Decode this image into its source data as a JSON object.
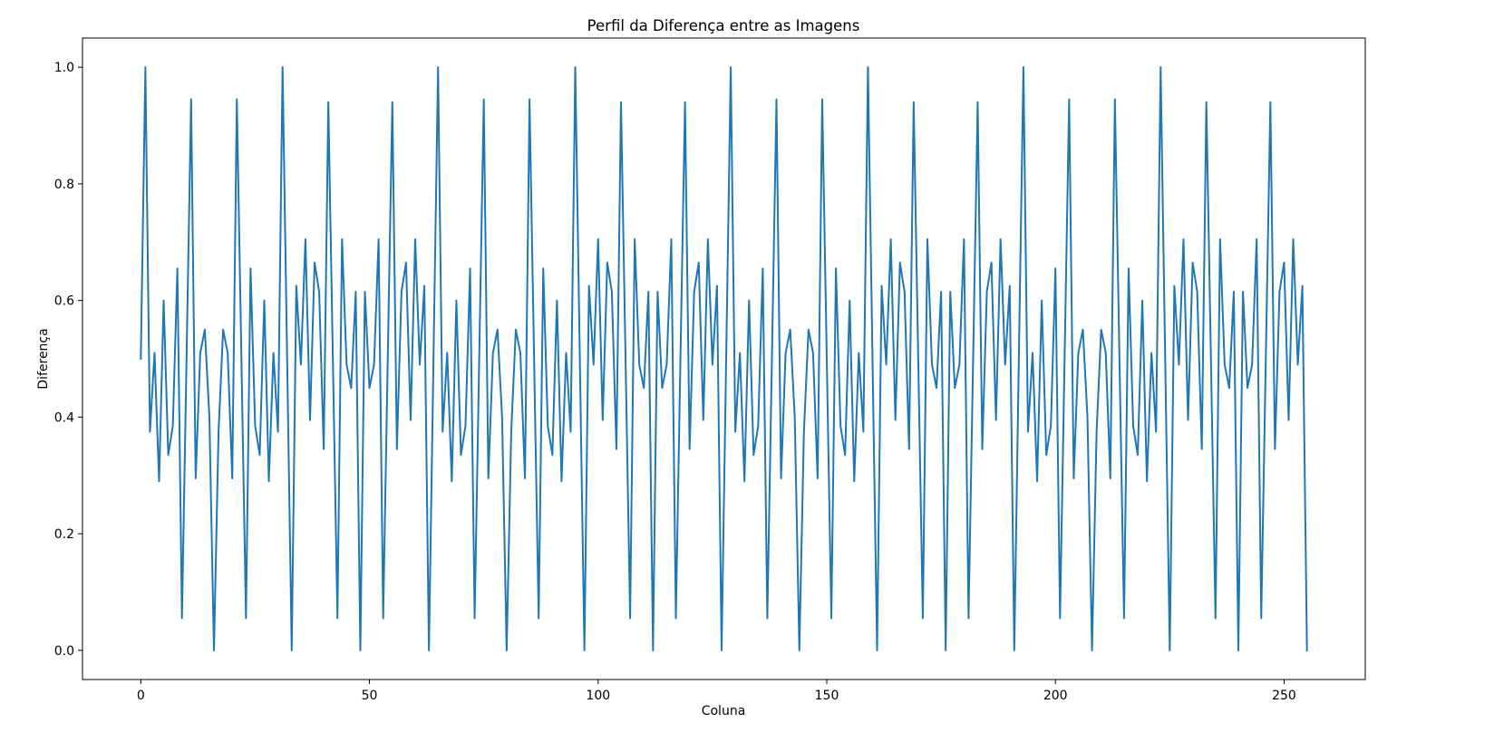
{
  "chart_data": {
    "type": "line",
    "title": "Perfil da Diferença entre as Imagens",
    "xlabel": "Coluna",
    "ylabel": "Diferença",
    "xlim": [
      -12.75,
      267.75
    ],
    "ylim": [
      -0.05,
      1.05
    ],
    "xticks": [
      0,
      50,
      100,
      150,
      200,
      250
    ],
    "yticks": [
      0.0,
      0.2,
      0.4,
      0.6,
      0.8,
      1.0
    ],
    "grid": false,
    "line_color": "#1f77b4",
    "series": [
      {
        "x_start": 0,
        "x_step": 1,
        "values": [
          0.5,
          1.0,
          0.375,
          0.51,
          0.29,
          0.6,
          0.335,
          0.385,
          0.655,
          0.055,
          0.5,
          0.945,
          0.295,
          0.51,
          0.55,
          0.4,
          0.0,
          0.375,
          0.55,
          0.51,
          0.295,
          0.945,
          0.5,
          0.055,
          0.655,
          0.385,
          0.335,
          0.6,
          0.29,
          0.51,
          0.375,
          1.0,
          0.5,
          0.0,
          0.625,
          0.49,
          0.705,
          0.395,
          0.665,
          0.615,
          0.345,
          0.94,
          0.5,
          0.055,
          0.705,
          0.49,
          0.45,
          0.615,
          0.0,
          0.615,
          0.45,
          0.49,
          0.705,
          0.055,
          0.5,
          0.94,
          0.345,
          0.615,
          0.665,
          0.395,
          0.705,
          0.49,
          0.625,
          0.0,
          0.5,
          1.0,
          0.375,
          0.51,
          0.29,
          0.6,
          0.335,
          0.385,
          0.655,
          0.055,
          0.5,
          0.945,
          0.295,
          0.51,
          0.55,
          0.4,
          0.0,
          0.375,
          0.55,
          0.51,
          0.295,
          0.945,
          0.5,
          0.055,
          0.655,
          0.385,
          0.335,
          0.6,
          0.29,
          0.51,
          0.375,
          1.0,
          0.5,
          0.0,
          0.625,
          0.49,
          0.705,
          0.395,
          0.665,
          0.615,
          0.345,
          0.94,
          0.5,
          0.055,
          0.705,
          0.49,
          0.45,
          0.615,
          0.0,
          0.615,
          0.45,
          0.49,
          0.705,
          0.055,
          0.5,
          0.94,
          0.345,
          0.615,
          0.665,
          0.395,
          0.705,
          0.49,
          0.625,
          0.0,
          0.5,
          1.0,
          0.375,
          0.51,
          0.29,
          0.6,
          0.335,
          0.385,
          0.655,
          0.055,
          0.5,
          0.945,
          0.295,
          0.51,
          0.55,
          0.4,
          0.0,
          0.375,
          0.55,
          0.51,
          0.295,
          0.945,
          0.5,
          0.055,
          0.655,
          0.385,
          0.335,
          0.6,
          0.29,
          0.51,
          0.375,
          1.0,
          0.5,
          0.0,
          0.625,
          0.49,
          0.705,
          0.395,
          0.665,
          0.615,
          0.345,
          0.94,
          0.5,
          0.055,
          0.705,
          0.49,
          0.45,
          0.615,
          0.0,
          0.615,
          0.45,
          0.49,
          0.705,
          0.055,
          0.5,
          0.94,
          0.345,
          0.615,
          0.665,
          0.395,
          0.705,
          0.49,
          0.625,
          0.0,
          0.5,
          1.0,
          0.375,
          0.51,
          0.29,
          0.6,
          0.335,
          0.385,
          0.655,
          0.055,
          0.5,
          0.945,
          0.295,
          0.51,
          0.55,
          0.4,
          0.0,
          0.375,
          0.55,
          0.51,
          0.295,
          0.945,
          0.5,
          0.055,
          0.655,
          0.385,
          0.335,
          0.6,
          0.29,
          0.51,
          0.375,
          1.0,
          0.5,
          0.0,
          0.625,
          0.49,
          0.705,
          0.395,
          0.665,
          0.615,
          0.345,
          0.94,
          0.5,
          0.055,
          0.705,
          0.49,
          0.45,
          0.615,
          0.0,
          0.615,
          0.45,
          0.49,
          0.705,
          0.055,
          0.5,
          0.94,
          0.345,
          0.615,
          0.665,
          0.395,
          0.705,
          0.49,
          0.625,
          0.0
        ]
      }
    ]
  }
}
